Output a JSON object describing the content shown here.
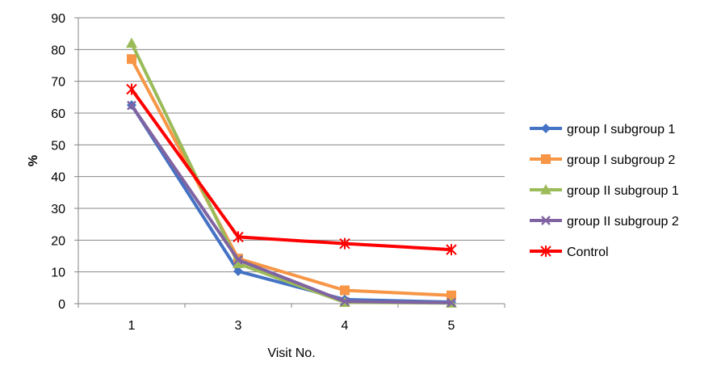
{
  "chart_data": {
    "type": "line",
    "title": "",
    "xlabel": "Visit No.",
    "ylabel": "%",
    "categories": [
      "1",
      "3",
      "4",
      "5"
    ],
    "ylim": [
      0,
      90
    ],
    "yticks": [
      0,
      10,
      20,
      30,
      40,
      50,
      60,
      70,
      80,
      90
    ],
    "grid": true,
    "legend_position": "right",
    "series": [
      {
        "name": "group I subgroup 1",
        "color": "#4472C4",
        "marker": "diamond",
        "values": [
          62.5,
          10.2,
          1.3,
          0.5
        ]
      },
      {
        "name": "group I subgroup 2",
        "color": "#F79646",
        "marker": "square",
        "values": [
          77.0,
          14.2,
          4.2,
          2.6
        ]
      },
      {
        "name": "group II subgroup 1",
        "color": "#9BBB59",
        "marker": "triangle",
        "values": [
          82.0,
          12.6,
          0.4,
          0.2
        ]
      },
      {
        "name": "group II subgroup 2",
        "color": "#8064A2",
        "marker": "x",
        "values": [
          62.4,
          13.8,
          0.7,
          0.3
        ]
      },
      {
        "name": "Control",
        "color": "#FF0000",
        "marker": "star",
        "values": [
          67.5,
          21.0,
          18.9,
          17.0
        ]
      }
    ]
  }
}
